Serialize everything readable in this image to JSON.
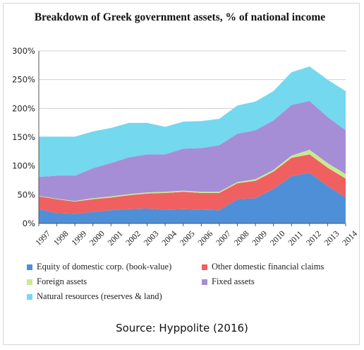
{
  "chart_data": {
    "type": "area",
    "stacked": true,
    "title": "Breakdown of Greek government assets, % of national income",
    "x": [
      "1997",
      "1998",
      "1999",
      "2000",
      "2001",
      "2002",
      "2003",
      "2004",
      "2005",
      "2006",
      "2007",
      "2008",
      "2009",
      "2010",
      "2011",
      "2012",
      "2013",
      "2014"
    ],
    "yticks": [
      "0%",
      "50%",
      "100%",
      "150%",
      "200%",
      "250%",
      "300%"
    ],
    "ylim": [
      0,
      300
    ],
    "grid": true,
    "legend_position": "bottom",
    "series": [
      {
        "name": "Equity of domestic corp. (book-value)",
        "color": "#4f8fd8",
        "values": [
          25,
          18,
          17,
          20,
          23,
          25,
          26,
          24,
          25,
          24,
          23,
          42,
          44,
          60,
          82,
          88,
          65,
          45
        ]
      },
      {
        "name": "Other domestic financial claims",
        "color": "#f06060",
        "values": [
          22,
          24,
          21,
          22,
          22,
          24,
          26,
          29,
          30,
          29,
          30,
          28,
          30,
          30,
          32,
          32,
          32,
          33
        ]
      },
      {
        "name": "Foreign assets",
        "color": "#c8ea90",
        "values": [
          1,
          1,
          1,
          2,
          2,
          2,
          2,
          2,
          2,
          2,
          2,
          2,
          3,
          3,
          4,
          8,
          8,
          8
        ]
      },
      {
        "name": "Fixed assets",
        "color": "#a58ed6",
        "values": [
          33,
          40,
          44,
          52,
          58,
          64,
          66,
          65,
          73,
          76,
          81,
          84,
          85,
          86,
          88,
          85,
          80,
          76
        ]
      },
      {
        "name": "Natural resources (reserves & land)",
        "color": "#74d8ee",
        "values": [
          70,
          68,
          68,
          64,
          61,
          60,
          55,
          48,
          47,
          47,
          46,
          49,
          50,
          51,
          57,
          60,
          65,
          68
        ]
      }
    ]
  },
  "source": "Source: Hyppolite (2016)"
}
